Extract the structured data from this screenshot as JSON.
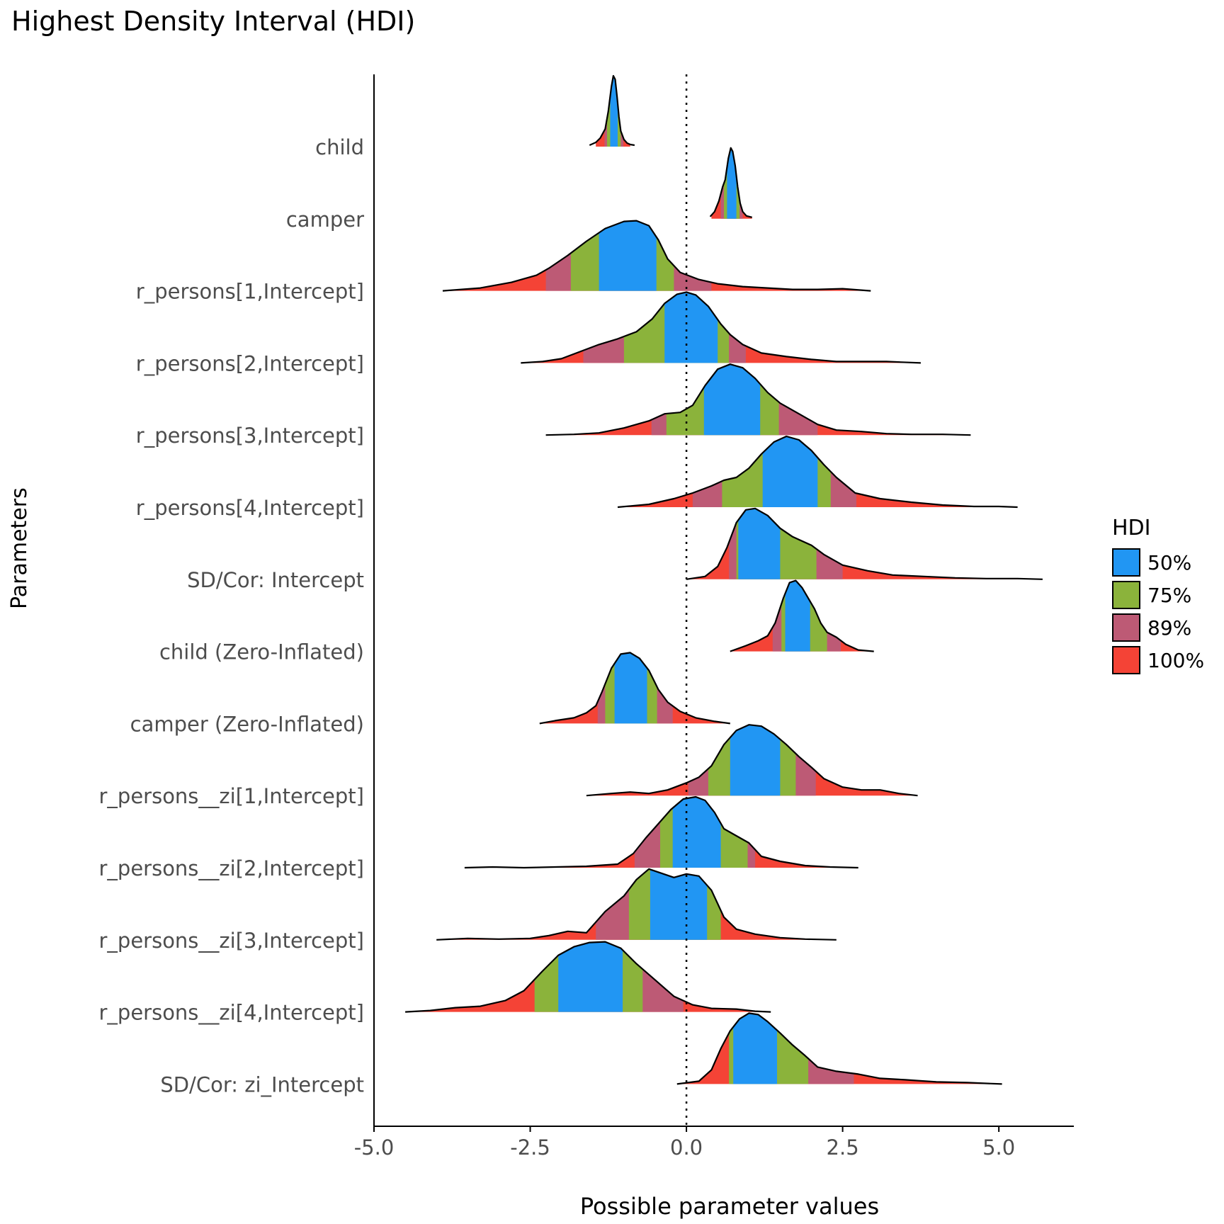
{
  "chart_data": {
    "type": "density-ridge",
    "title": "Highest Density Interval (HDI)",
    "xlabel": "Possible parameter values",
    "ylabel": "Parameters",
    "xlim": [
      -5.0,
      6.2
    ],
    "x_ticks": [
      "-5.0",
      "-2.5",
      "0.0",
      "2.5",
      "5.0"
    ],
    "x_tick_values": [
      -5.0,
      -2.5,
      0.0,
      2.5,
      5.0
    ],
    "reference_line_x": 0.0,
    "grid": false,
    "legend": {
      "title": "HDI",
      "placement": "right",
      "entries": [
        {
          "label": "50%",
          "color": "#2196F3"
        },
        {
          "label": "75%",
          "color": "#8BB33B"
        },
        {
          "label": "89%",
          "color": "#BD5A75"
        },
        {
          "label": "100%",
          "color": "#F44336"
        }
      ]
    },
    "series": [
      {
        "name": "child",
        "hdi50": [
          -1.22,
          -1.1
        ],
        "hdi75": [
          -1.27,
          -1.05
        ],
        "hdi89": [
          -1.31,
          -1.01
        ],
        "hdi100": [
          -1.45,
          -0.9
        ],
        "x": [
          -1.55,
          -1.45,
          -1.38,
          -1.3,
          -1.25,
          -1.2,
          -1.17,
          -1.14,
          -1.11,
          -1.08,
          -1.05,
          -1.0,
          -0.95,
          -0.9,
          -0.83
        ],
        "y": [
          0.02,
          0.06,
          0.12,
          0.25,
          0.5,
          0.85,
          1.0,
          0.95,
          0.7,
          0.42,
          0.22,
          0.1,
          0.05,
          0.03,
          0.02
        ]
      },
      {
        "name": "camper",
        "hdi50": [
          0.65,
          0.8
        ],
        "hdi75": [
          0.6,
          0.85
        ],
        "hdi89": [
          0.55,
          0.9
        ],
        "hdi100": [
          0.4,
          1.05
        ],
        "x": [
          0.38,
          0.45,
          0.52,
          0.58,
          0.62,
          0.67,
          0.71,
          0.74,
          0.78,
          0.82,
          0.86,
          0.9,
          0.96,
          1.05
        ],
        "y": [
          0.03,
          0.1,
          0.25,
          0.45,
          0.55,
          0.85,
          1.0,
          0.95,
          0.75,
          0.45,
          0.22,
          0.1,
          0.04,
          0.02
        ]
      },
      {
        "name": "r_persons[1,Intercept]",
        "hdi50": [
          -1.4,
          -0.48
        ],
        "hdi75": [
          -1.85,
          -0.2
        ],
        "hdi89": [
          -2.25,
          0.4
        ],
        "hdi100": [
          -3.85,
          2.95
        ],
        "x": [
          -3.9,
          -3.3,
          -2.8,
          -2.4,
          -2.2,
          -1.9,
          -1.6,
          -1.3,
          -1.0,
          -0.8,
          -0.6,
          -0.45,
          -0.3,
          -0.1,
          0.2,
          0.5,
          0.9,
          1.3,
          1.7,
          2.1,
          2.5,
          2.95
        ],
        "y": [
          0.0,
          0.04,
          0.12,
          0.22,
          0.32,
          0.5,
          0.7,
          0.88,
          0.98,
          0.99,
          0.92,
          0.72,
          0.45,
          0.26,
          0.16,
          0.1,
          0.06,
          0.04,
          0.02,
          0.02,
          0.03,
          0.0
        ]
      },
      {
        "name": "r_persons[2,Intercept]",
        "hdi50": [
          -0.35,
          0.5
        ],
        "hdi75": [
          -1.0,
          0.68
        ],
        "hdi89": [
          -1.65,
          0.95
        ],
        "hdi100": [
          -2.65,
          3.75
        ],
        "x": [
          -2.65,
          -2.3,
          -2.0,
          -1.7,
          -1.4,
          -1.1,
          -0.8,
          -0.55,
          -0.35,
          -0.15,
          0.0,
          0.15,
          0.35,
          0.55,
          0.7,
          0.9,
          1.2,
          1.6,
          2.0,
          2.4,
          2.8,
          3.2,
          3.75
        ],
        "y": [
          0.0,
          0.02,
          0.06,
          0.16,
          0.26,
          0.34,
          0.44,
          0.62,
          0.84,
          0.97,
          1.0,
          0.96,
          0.8,
          0.55,
          0.4,
          0.26,
          0.14,
          0.09,
          0.05,
          0.02,
          0.02,
          0.02,
          0.0
        ]
      },
      {
        "name": "r_persons[3,Intercept]",
        "hdi50": [
          0.28,
          1.18
        ],
        "hdi75": [
          -0.32,
          1.48
        ],
        "hdi89": [
          -0.56,
          2.1
        ],
        "hdi100": [
          -2.25,
          4.55
        ],
        "x": [
          -2.25,
          -1.8,
          -1.4,
          -1.0,
          -0.6,
          -0.35,
          -0.1,
          0.1,
          0.3,
          0.5,
          0.7,
          0.9,
          1.1,
          1.3,
          1.5,
          1.8,
          2.1,
          2.4,
          2.8,
          3.2,
          3.6,
          4.1,
          4.55
        ],
        "y": [
          0.0,
          0.01,
          0.03,
          0.1,
          0.2,
          0.3,
          0.32,
          0.42,
          0.7,
          0.93,
          1.0,
          0.95,
          0.8,
          0.6,
          0.45,
          0.3,
          0.15,
          0.07,
          0.05,
          0.02,
          0.01,
          0.01,
          0.0
        ]
      },
      {
        "name": "r_persons[4,Intercept]",
        "hdi50": [
          1.22,
          2.1
        ],
        "hdi75": [
          0.57,
          2.31
        ],
        "hdi89": [
          0.1,
          2.72
        ],
        "hdi100": [
          -1.1,
          5.3
        ],
        "x": [
          -1.1,
          -0.6,
          -0.2,
          0.1,
          0.4,
          0.6,
          0.8,
          1.0,
          1.2,
          1.4,
          1.6,
          1.8,
          2.0,
          2.2,
          2.4,
          2.7,
          3.1,
          3.6,
          4.1,
          4.6,
          5.0,
          5.3
        ],
        "y": [
          0.0,
          0.04,
          0.12,
          0.2,
          0.3,
          0.38,
          0.42,
          0.55,
          0.75,
          0.92,
          1.0,
          0.95,
          0.8,
          0.6,
          0.42,
          0.2,
          0.12,
          0.07,
          0.03,
          0.01,
          0.01,
          0.0
        ]
      },
      {
        "name": "SD/Cor:  Intercept",
        "hdi50": [
          0.83,
          1.5
        ],
        "hdi75": [
          0.8,
          2.08
        ],
        "hdi89": [
          0.68,
          2.5
        ],
        "hdi100": [
          0.0,
          5.7
        ],
        "x": [
          0.0,
          0.3,
          0.5,
          0.65,
          0.8,
          0.95,
          1.1,
          1.3,
          1.5,
          1.7,
          2.0,
          2.2,
          2.5,
          2.9,
          3.3,
          3.8,
          4.3,
          4.8,
          5.3,
          5.7
        ],
        "y": [
          0.0,
          0.04,
          0.18,
          0.45,
          0.8,
          0.98,
          1.0,
          0.9,
          0.72,
          0.6,
          0.48,
          0.35,
          0.2,
          0.12,
          0.06,
          0.04,
          0.02,
          0.01,
          0.01,
          0.0
        ]
      },
      {
        "name": "child (Zero-Inflated)",
        "hdi50": [
          1.58,
          1.98
        ],
        "hdi75": [
          1.52,
          2.25
        ],
        "hdi89": [
          1.38,
          2.47
        ],
        "hdi100": [
          0.7,
          3.0
        ],
        "x": [
          0.7,
          0.95,
          1.15,
          1.3,
          1.42,
          1.55,
          1.65,
          1.75,
          1.85,
          1.95,
          2.05,
          2.15,
          2.25,
          2.4,
          2.55,
          2.75,
          3.0
        ],
        "y": [
          0.0,
          0.08,
          0.15,
          0.22,
          0.4,
          0.75,
          0.97,
          1.0,
          0.9,
          0.75,
          0.6,
          0.4,
          0.27,
          0.2,
          0.1,
          0.02,
          0.0
        ]
      },
      {
        "name": "camper (Zero-Inflated)",
        "hdi50": [
          -1.15,
          -0.63
        ],
        "hdi75": [
          -1.3,
          -0.47
        ],
        "hdi89": [
          -1.42,
          -0.22
        ],
        "hdi100": [
          -2.35,
          0.7
        ],
        "x": [
          -2.35,
          -2.1,
          -1.8,
          -1.6,
          -1.45,
          -1.35,
          -1.2,
          -1.05,
          -0.9,
          -0.75,
          -0.6,
          -0.45,
          -0.3,
          -0.1,
          0.15,
          0.45,
          0.7
        ],
        "y": [
          0.0,
          0.04,
          0.08,
          0.15,
          0.25,
          0.45,
          0.78,
          0.98,
          1.0,
          0.92,
          0.75,
          0.48,
          0.3,
          0.17,
          0.08,
          0.03,
          0.0
        ]
      },
      {
        "name": "r_persons__zi[1,Intercept]",
        "hdi50": [
          0.7,
          1.5
        ],
        "hdi75": [
          0.35,
          1.75
        ],
        "hdi89": [
          0.03,
          2.07
        ],
        "hdi100": [
          -1.6,
          3.7
        ],
        "x": [
          -1.6,
          -1.2,
          -0.9,
          -0.6,
          -0.3,
          0.0,
          0.2,
          0.4,
          0.6,
          0.8,
          1.0,
          1.2,
          1.4,
          1.6,
          1.8,
          2.0,
          2.2,
          2.5,
          2.8,
          3.1,
          3.4,
          3.7
        ],
        "y": [
          0.0,
          0.03,
          0.05,
          0.03,
          0.08,
          0.18,
          0.26,
          0.42,
          0.72,
          0.92,
          1.0,
          0.98,
          0.87,
          0.72,
          0.55,
          0.4,
          0.24,
          0.12,
          0.08,
          0.08,
          0.03,
          0.0
        ]
      },
      {
        "name": "r_persons__zi[2,Intercept]",
        "hdi50": [
          -0.22,
          0.55
        ],
        "hdi75": [
          -0.42,
          0.98
        ],
        "hdi89": [
          -0.83,
          1.1
        ],
        "hdi100": [
          -3.55,
          2.75
        ],
        "x": [
          -3.55,
          -3.1,
          -2.6,
          -2.1,
          -1.6,
          -1.1,
          -0.85,
          -0.65,
          -0.45,
          -0.25,
          -0.05,
          0.15,
          0.3,
          0.45,
          0.6,
          0.8,
          1.0,
          1.2,
          1.5,
          1.9,
          2.3,
          2.75
        ],
        "y": [
          0.0,
          0.01,
          0.0,
          0.01,
          0.02,
          0.05,
          0.2,
          0.42,
          0.62,
          0.82,
          0.97,
          1.0,
          0.95,
          0.78,
          0.55,
          0.45,
          0.35,
          0.16,
          0.09,
          0.03,
          0.01,
          0.0
        ]
      },
      {
        "name": "r_persons__zi[3,Intercept]",
        "hdi50": [
          -0.58,
          0.33
        ],
        "hdi75": [
          -0.92,
          0.55
        ],
        "hdi89": [
          -1.45,
          0.55
        ],
        "hdi100": [
          -4.0,
          2.4
        ],
        "x": [
          -4.0,
          -3.5,
          -3.0,
          -2.5,
          -2.2,
          -1.9,
          -1.6,
          -1.3,
          -1.0,
          -0.8,
          -0.6,
          -0.4,
          -0.2,
          0.0,
          0.2,
          0.4,
          0.6,
          0.8,
          1.1,
          1.5,
          1.9,
          2.4
        ],
        "y": [
          0.0,
          0.02,
          0.01,
          0.02,
          0.06,
          0.12,
          0.1,
          0.4,
          0.62,
          0.85,
          1.0,
          0.94,
          0.88,
          0.93,
          0.9,
          0.7,
          0.32,
          0.15,
          0.08,
          0.03,
          0.01,
          0.0
        ]
      },
      {
        "name": "r_persons__zi[4,Intercept]",
        "hdi50": [
          -2.05,
          -1.02
        ],
        "hdi75": [
          -2.43,
          -0.7
        ],
        "hdi89": [
          -2.43,
          -0.05
        ],
        "hdi100": [
          -4.5,
          1.35
        ],
        "x": [
          -4.5,
          -4.1,
          -3.7,
          -3.3,
          -2.9,
          -2.6,
          -2.3,
          -2.05,
          -1.8,
          -1.55,
          -1.3,
          -1.05,
          -0.8,
          -0.5,
          -0.2,
          0.1,
          0.4,
          0.8,
          1.1,
          1.35
        ],
        "y": [
          0.0,
          0.02,
          0.06,
          0.08,
          0.16,
          0.3,
          0.58,
          0.8,
          0.92,
          0.98,
          0.99,
          0.9,
          0.68,
          0.45,
          0.22,
          0.1,
          0.05,
          0.04,
          0.01,
          0.0
        ]
      },
      {
        "name": "SD/Cor:  zi_Intercept",
        "hdi50": [
          0.75,
          1.45
        ],
        "hdi75": [
          0.68,
          1.95
        ],
        "hdi89": [
          0.68,
          2.68
        ],
        "hdi100": [
          -0.15,
          5.05
        ],
        "x": [
          -0.15,
          0.2,
          0.4,
          0.55,
          0.7,
          0.85,
          1.0,
          1.15,
          1.3,
          1.5,
          1.7,
          1.9,
          2.1,
          2.4,
          2.75,
          3.1,
          3.5,
          4.0,
          4.5,
          5.05
        ],
        "y": [
          0.0,
          0.04,
          0.2,
          0.5,
          0.75,
          0.92,
          1.0,
          0.98,
          0.88,
          0.72,
          0.55,
          0.4,
          0.24,
          0.18,
          0.14,
          0.08,
          0.06,
          0.03,
          0.02,
          0.0
        ]
      }
    ]
  }
}
